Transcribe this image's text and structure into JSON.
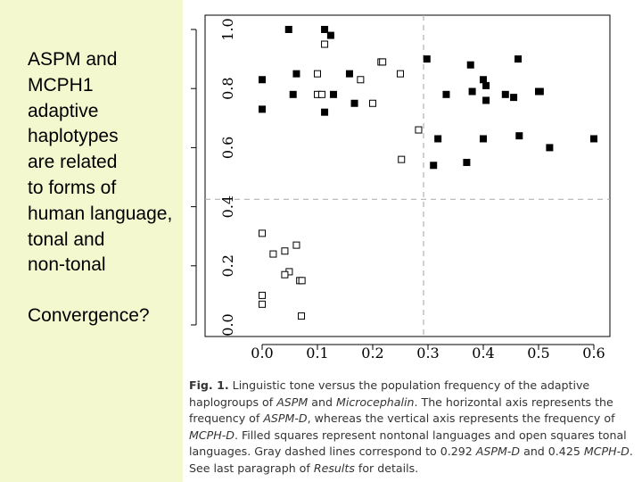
{
  "slide": {
    "bullet1": "ASPM and\nMCPH1\nadaptive\nhaplotypes\nare related\nto forms of\nhuman language,\ntonal and\nnon-tonal",
    "bullet2": "Convergence?"
  },
  "caption": {
    "label": "Fig. 1.",
    "p1": "Linguistic tone versus the population frequency of the adaptive haplogroups of ",
    "e1": "ASPM",
    "p2": " and ",
    "e2": "Microcephalin",
    "p3": ". The horizontal axis represents the frequency of ",
    "e3": "ASPM-D",
    "p4": ", whereas the vertical axis represents the frequency of ",
    "e4": "MCPH-D",
    "p5": ". Filled squares represent nontonal languages and open squares tonal languages. Gray dashed lines correspond to 0.292 ",
    "e5": "ASPM-D",
    "p6": " and 0.425 ",
    "e6": "MCPH-D",
    "p7": ". See last paragraph of ",
    "e7": "Results",
    "p8": " for details."
  },
  "colors": {
    "panel": "#f3f8cf",
    "ink": "#000000",
    "dash": "#b3b3b3"
  },
  "chart_data": {
    "type": "scatter",
    "xlim": [
      0,
      0.6
    ],
    "ylim": [
      0,
      1.0
    ],
    "xticks": [
      "0.0",
      "0.1",
      "0.2",
      "0.3",
      "0.4",
      "0.5",
      "0.6"
    ],
    "yticks": [
      "0.0",
      "0.2",
      "0.4",
      "0.6",
      "0.8",
      "1.0"
    ],
    "reference_lines": {
      "x": 0.292,
      "y": 0.425
    },
    "grid": false,
    "series": [
      {
        "marker": "filled-square",
        "points": [
          [
            0.048,
            1.0
          ],
          [
            0.113,
            1.0
          ],
          [
            0.124,
            0.98
          ],
          [
            0.0,
            0.83
          ],
          [
            0.062,
            0.85
          ],
          [
            0.158,
            0.85
          ],
          [
            0.056,
            0.78
          ],
          [
            0.129,
            0.78
          ],
          [
            0.0,
            0.73
          ],
          [
            0.113,
            0.72
          ],
          [
            0.167,
            0.75
          ],
          [
            0.298,
            0.9
          ],
          [
            0.377,
            0.88
          ],
          [
            0.463,
            0.9
          ],
          [
            0.4,
            0.83
          ],
          [
            0.405,
            0.81
          ],
          [
            0.333,
            0.78
          ],
          [
            0.38,
            0.79
          ],
          [
            0.44,
            0.78
          ],
          [
            0.455,
            0.77
          ],
          [
            0.5,
            0.79
          ],
          [
            0.503,
            0.79
          ],
          [
            0.405,
            0.76
          ],
          [
            0.318,
            0.63
          ],
          [
            0.4,
            0.63
          ],
          [
            0.465,
            0.64
          ],
          [
            0.6,
            0.63
          ],
          [
            0.52,
            0.6
          ],
          [
            0.31,
            0.54
          ],
          [
            0.37,
            0.55
          ]
        ]
      },
      {
        "marker": "open-square",
        "points": [
          [
            0.113,
            0.95
          ],
          [
            0.215,
            0.89
          ],
          [
            0.218,
            0.89
          ],
          [
            0.25,
            0.85
          ],
          [
            0.1,
            0.85
          ],
          [
            0.178,
            0.83
          ],
          [
            0.1,
            0.78
          ],
          [
            0.108,
            0.78
          ],
          [
            0.2,
            0.75
          ],
          [
            0.283,
            0.66
          ],
          [
            0.252,
            0.56
          ],
          [
            0.0,
            0.31
          ],
          [
            0.062,
            0.27
          ],
          [
            0.02,
            0.24
          ],
          [
            0.041,
            0.25
          ],
          [
            0.049,
            0.18
          ],
          [
            0.041,
            0.17
          ],
          [
            0.068,
            0.15
          ],
          [
            0.072,
            0.15
          ],
          [
            0.0,
            0.1
          ],
          [
            0.0,
            0.07
          ],
          [
            0.071,
            0.03
          ]
        ]
      }
    ]
  }
}
